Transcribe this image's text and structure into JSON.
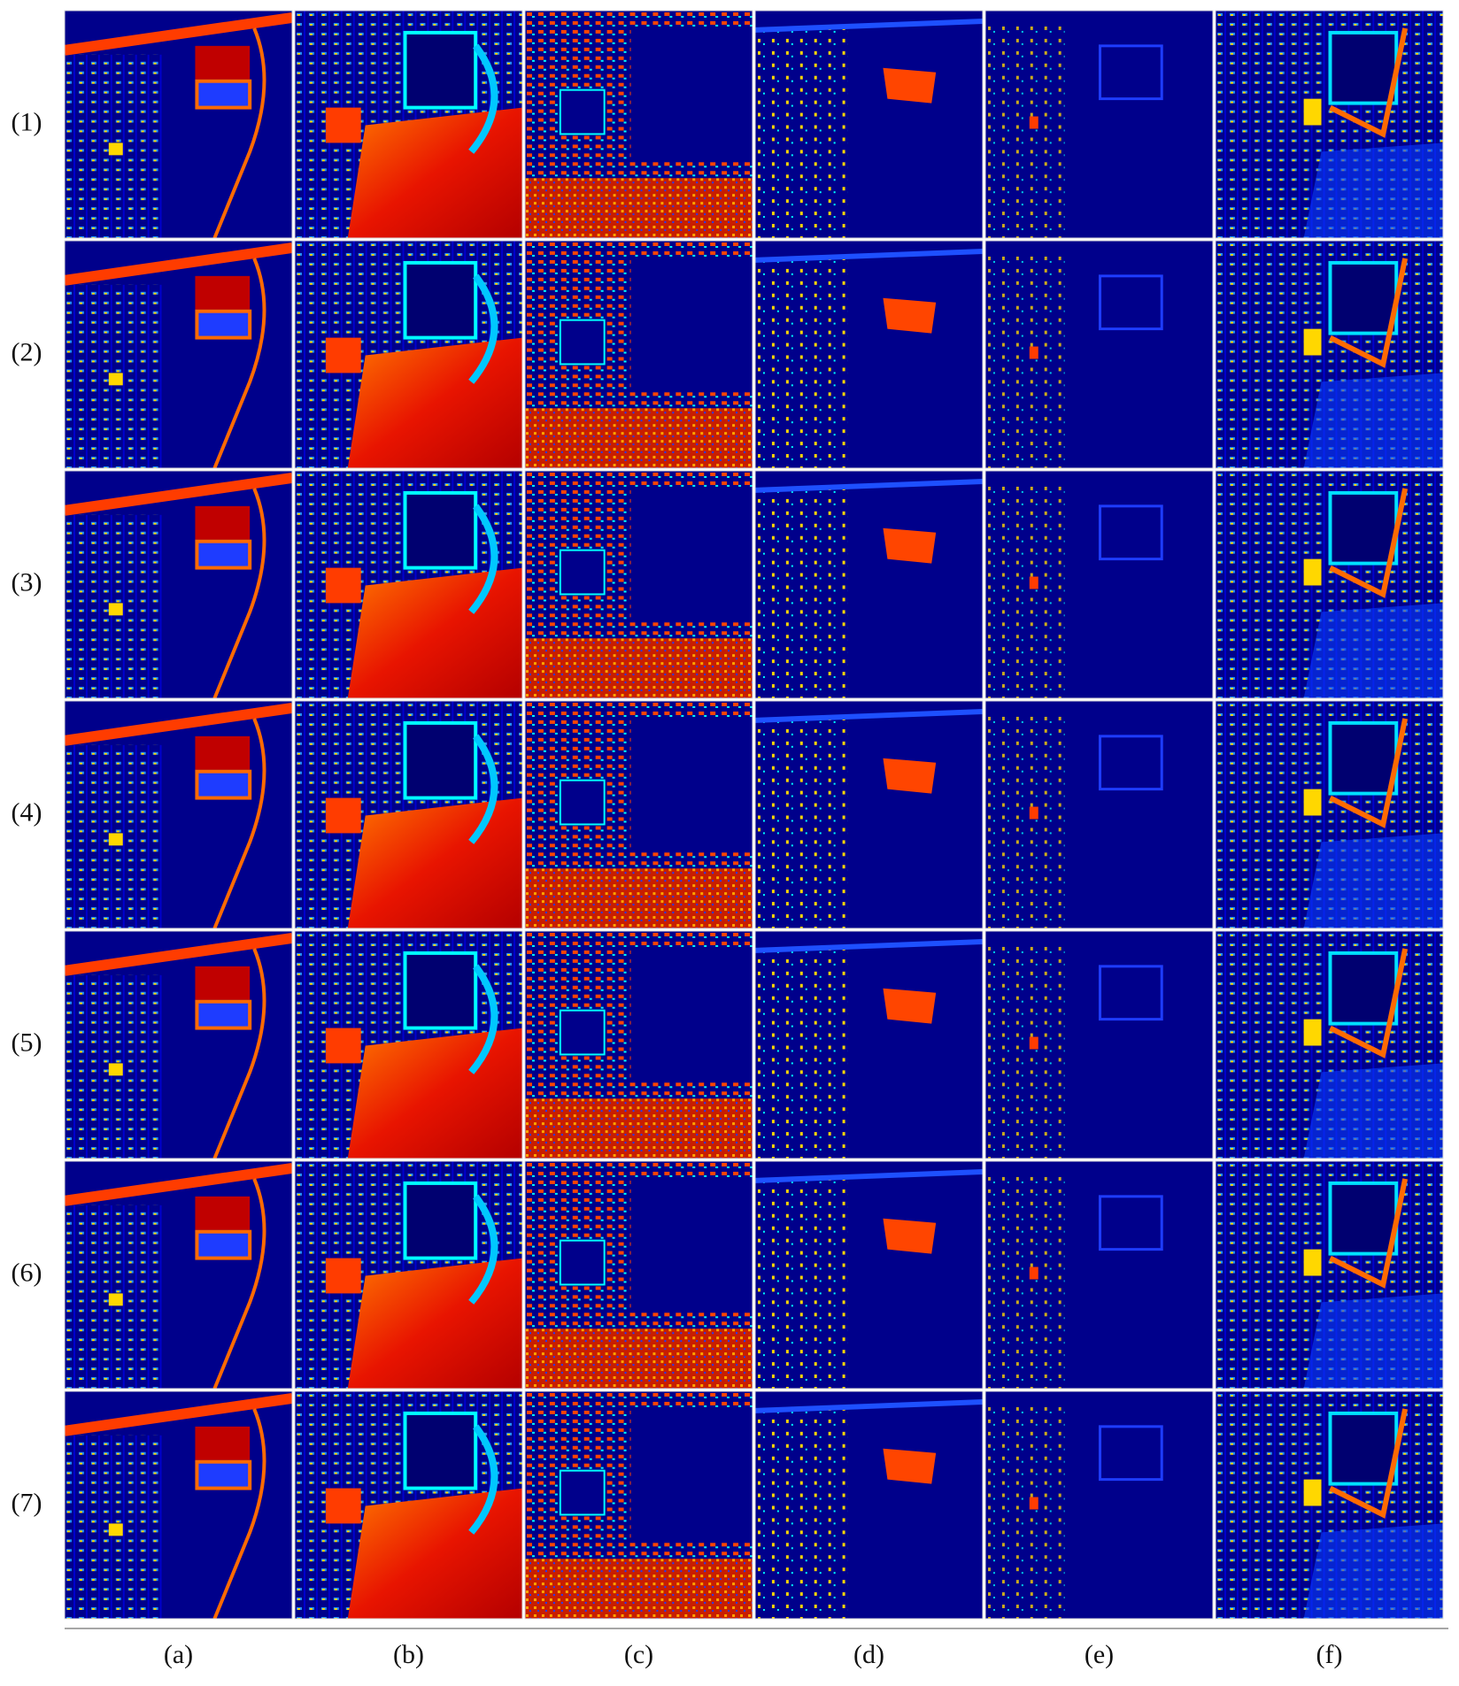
{
  "figure": {
    "row_labels": [
      "(1)",
      "(2)",
      "(3)",
      "(4)",
      "(5)",
      "(6)",
      "(7)"
    ],
    "column_labels": [
      "(a)",
      "(b)",
      "(c)",
      "(d)",
      "(e)",
      "(f)"
    ]
  }
}
